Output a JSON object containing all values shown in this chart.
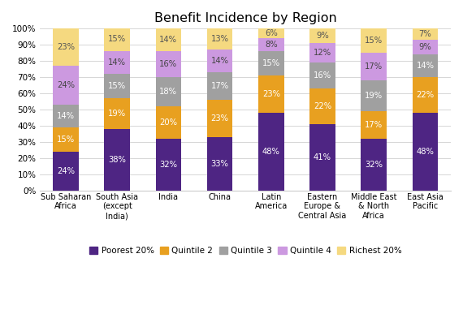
{
  "title": "Benefit Incidence by Region",
  "categories": [
    "Sub Saharan\nAfrica",
    "South Asia\n(except\nIndia)",
    "India",
    "China",
    "Latin\nAmerica",
    "Eastern\nEurope &\nCentral Asia",
    "Middle East\n& North\nAfrica",
    "East Asia\nPacific"
  ],
  "series": {
    "Poorest 20%": [
      24,
      38,
      32,
      33,
      48,
      41,
      32,
      48
    ],
    "Quintile 2": [
      15,
      19,
      20,
      23,
      23,
      22,
      17,
      22
    ],
    "Quintile 3": [
      14,
      15,
      18,
      17,
      15,
      16,
      19,
      14
    ],
    "Quintile 4": [
      24,
      14,
      16,
      14,
      8,
      12,
      17,
      9
    ],
    "Richest 20%": [
      23,
      15,
      14,
      13,
      6,
      9,
      15,
      7
    ]
  },
  "colors": {
    "Poorest 20%": "#4e2583",
    "Quintile 2": "#e8a020",
    "Quintile 3": "#a0a0a0",
    "Quintile 4": "#cc99e0",
    "Richest 20%": "#f5d980"
  },
  "text_colors": {
    "Poorest 20%": "white",
    "Quintile 2": "white",
    "Quintile 3": "white",
    "Quintile 4": "#444444",
    "Richest 20%": "#555555"
  },
  "ylim": [
    0,
    100
  ],
  "ytick_labels": [
    "0%",
    "10%",
    "20%",
    "30%",
    "40%",
    "50%",
    "60%",
    "70%",
    "80%",
    "90%",
    "100%"
  ],
  "background_color": "#ffffff",
  "bar_width": 0.5,
  "figsize": [
    5.7,
    4.03
  ],
  "dpi": 100
}
